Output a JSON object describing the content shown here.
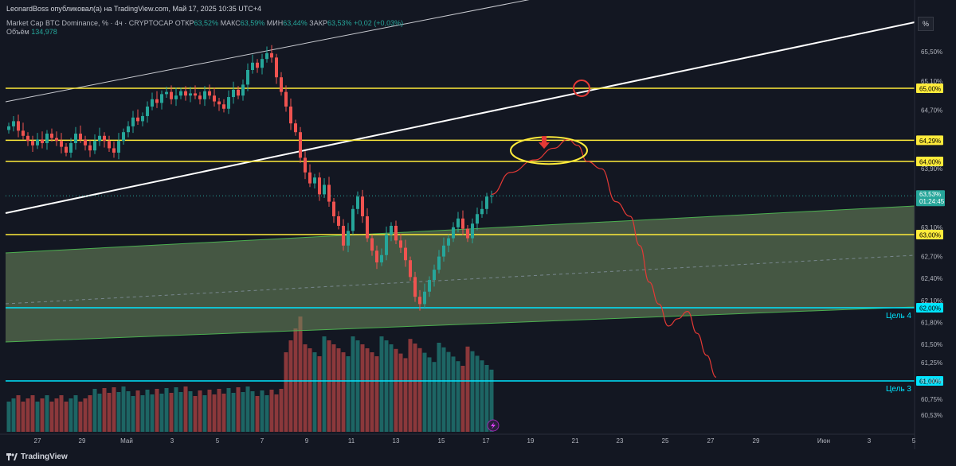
{
  "header": {
    "publisher": "LeonardBoss опубликовал(а) на TradingView.com, Май 17, 2025 10:35 UTC+4",
    "symbol": "Market Cap BTC Dominance, % · 4ч · CRYPTOCAP",
    "open_label": "ОТКР",
    "open_value": "63,52%",
    "high_label": "МАКС",
    "high_value": "63,59%",
    "low_label": "МИН",
    "low_value": "63,44%",
    "close_label": "ЗАКР",
    "close_value": "63,53%",
    "change": "+0,02 (+0,03%)",
    "volume_label": "Объём",
    "volume_value": "134,978"
  },
  "toolbar": {
    "percent_button": "%"
  },
  "footer": {
    "brand": "TradingView"
  },
  "colors": {
    "background": "#131722",
    "up": "#26a69a",
    "down": "#ef5350",
    "level_yellow": "#ffeb3b",
    "target_cyan": "#00e5ff",
    "channel_fill": "#6f8c5e",
    "channel_edge": "#4caf50",
    "projection": "#e53935",
    "trendline": "#ffffff"
  },
  "chart_data": {
    "type": "candlestick",
    "timeframe": "4h",
    "y_axis_labels": [
      "65,50%",
      "65,10%",
      "64,70%",
      "63,90%",
      "63,10%",
      "62,70%",
      "62,40%",
      "62,10%",
      "61,80%",
      "61,50%",
      "61,25%",
      "61,00%",
      "60,75%",
      "60,53%"
    ],
    "x_axis_labels": [
      "27",
      "29",
      "Май",
      "3",
      "5",
      "7",
      "9",
      "11",
      "13",
      "15",
      "17",
      "19",
      "21",
      "23",
      "25",
      "27",
      "29",
      "Июн",
      "3",
      "5"
    ],
    "ylim": [
      60.35,
      66.0
    ],
    "closes": [
      64.48,
      64.55,
      64.42,
      64.35,
      64.28,
      64.22,
      64.3,
      64.25,
      64.38,
      64.32,
      64.28,
      64.2,
      64.12,
      64.25,
      64.38,
      64.3,
      64.22,
      64.15,
      64.28,
      64.35,
      64.28,
      64.18,
      64.12,
      64.28,
      64.4,
      64.48,
      64.6,
      64.55,
      64.62,
      64.75,
      64.85,
      64.8,
      64.92,
      64.95,
      64.85,
      64.9,
      64.96,
      64.9,
      64.93,
      64.9,
      64.85,
      64.96,
      64.9,
      64.82,
      64.78,
      64.72,
      64.88,
      64.98,
      64.9,
      65.05,
      65.25,
      65.35,
      65.28,
      65.4,
      65.48,
      65.42,
      65.15,
      64.95,
      64.75,
      64.52,
      64.4,
      64.05,
      63.85,
      63.7,
      63.78,
      63.55,
      63.68,
      63.45,
      63.25,
      63.12,
      62.85,
      63.05,
      63.35,
      63.52,
      63.25,
      62.95,
      62.78,
      62.62,
      62.72,
      63.0,
      63.12,
      62.92,
      62.82,
      62.65,
      62.42,
      62.15,
      62.05,
      62.22,
      62.38,
      62.52,
      62.7,
      62.85,
      62.95,
      63.1,
      63.22,
      63.08,
      62.95,
      63.15,
      63.28,
      63.35,
      63.52,
      63.53
    ],
    "levels": [
      {
        "label": "65,00%",
        "value": 65.0,
        "color": "#ffeb3b"
      },
      {
        "label": "64,29%",
        "value": 64.29,
        "color": "#ffeb3b"
      },
      {
        "label": "64,00%",
        "value": 64.0,
        "color": "#ffeb3b"
      },
      {
        "label": "63,00%",
        "value": 63.0,
        "color": "#ffeb3b"
      },
      {
        "label": "62,00%",
        "value": 62.0,
        "color": "#00e5ff"
      },
      {
        "label": "61,00%",
        "value": 61.0,
        "color": "#00e5ff"
      }
    ],
    "last_price": {
      "label": "63,53%",
      "timer": "01:24:45",
      "value": 63.53
    },
    "annotations": [
      {
        "text": "Цель 4",
        "value": 62.0
      },
      {
        "text": "Цель 3",
        "value": 61.0
      }
    ],
    "projection": [
      {
        "i": 101,
        "v": 63.55
      },
      {
        "i": 105,
        "v": 63.85
      },
      {
        "i": 110,
        "v": 64.02
      },
      {
        "i": 114,
        "v": 64.18
      },
      {
        "i": 117,
        "v": 64.3
      },
      {
        "i": 119,
        "v": 64.22
      },
      {
        "i": 121,
        "v": 64.0
      },
      {
        "i": 124,
        "v": 63.9
      },
      {
        "i": 127,
        "v": 63.45
      },
      {
        "i": 130,
        "v": 63.25
      },
      {
        "i": 132,
        "v": 62.85
      },
      {
        "i": 134,
        "v": 62.35
      },
      {
        "i": 136,
        "v": 62.05
      },
      {
        "i": 138,
        "v": 61.75
      },
      {
        "i": 140,
        "v": 61.85
      },
      {
        "i": 142,
        "v": 61.95
      },
      {
        "i": 144,
        "v": 61.65
      },
      {
        "i": 146,
        "v": 61.35
      },
      {
        "i": 148,
        "v": 61.05
      }
    ]
  }
}
